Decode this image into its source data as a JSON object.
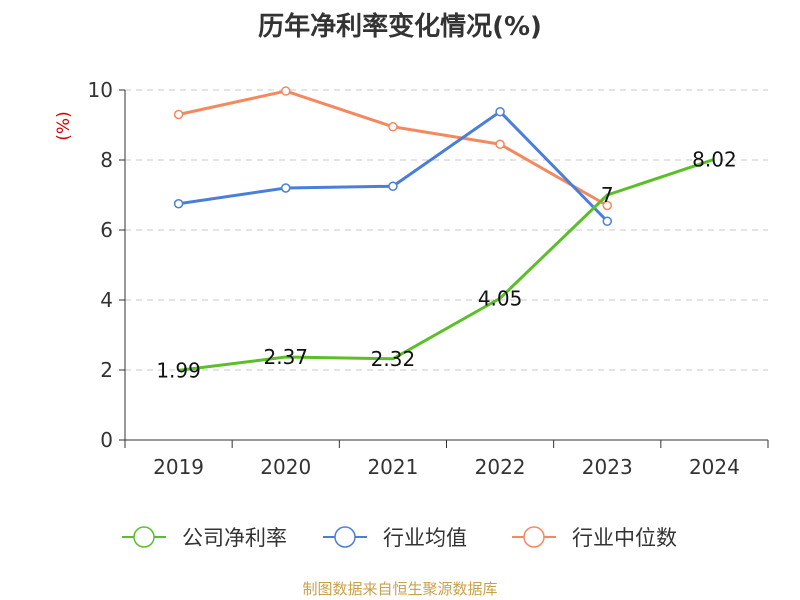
{
  "chart_data": {
    "type": "line",
    "title": "历年净利率变化情况(%)",
    "ylabel": "(%)",
    "xlabel": "",
    "ylim": [
      0,
      10
    ],
    "yticks": [
      "0",
      "2",
      "4",
      "6",
      "8",
      "10"
    ],
    "categories": [
      "2019",
      "2020",
      "2021",
      "2022",
      "2023",
      "2024"
    ],
    "grid": true,
    "legend_position": "bottom",
    "series": [
      {
        "name": "公司净利率",
        "color": "#5cbf2a",
        "values": [
          1.99,
          2.37,
          2.32,
          4.05,
          7,
          8.02
        ],
        "labels": [
          "1.99",
          "2.37",
          "2.32",
          "4.05",
          "7",
          "8.02"
        ]
      },
      {
        "name": "行业均值",
        "color": "#4a7fd9",
        "values": [
          6.75,
          7.2,
          7.25,
          9.38,
          6.25,
          null
        ]
      },
      {
        "name": "行业中位数",
        "color": "#f4895f",
        "values": [
          9.3,
          9.97,
          8.95,
          8.45,
          6.7,
          null
        ]
      }
    ]
  },
  "footer": "制图数据来自恒生聚源数据库"
}
